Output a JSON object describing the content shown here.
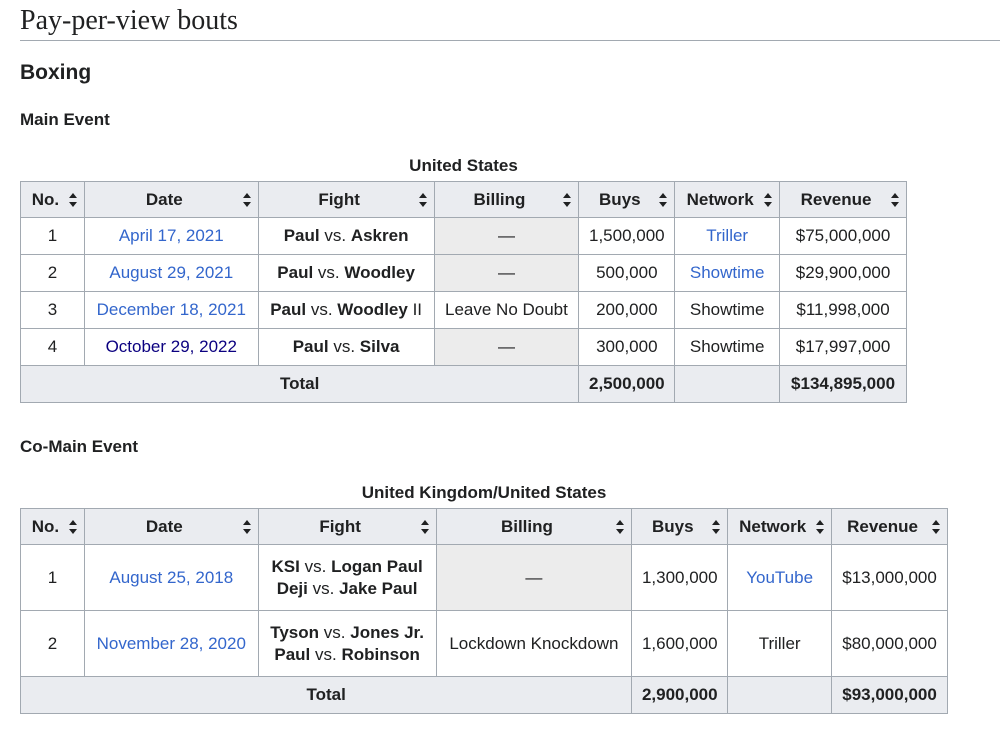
{
  "section_title": "Pay-per-view bouts",
  "subsection_title": "Boxing",
  "main_event": {
    "heading": "Main Event",
    "caption": "United States",
    "headers": [
      "No.",
      "Date",
      "Fight",
      "Billing",
      "Buys",
      "Network",
      "Revenue"
    ],
    "rows": [
      {
        "no": "1",
        "date": "April 17, 2021",
        "fighter_a": "Paul",
        "vs": "vs.",
        "fighter_b": "Askren",
        "suffix": "",
        "billing": "—",
        "buys": "1,500,000",
        "network": "Triller",
        "revenue": "$75,000,000"
      },
      {
        "no": "2",
        "date": "August 29, 2021",
        "fighter_a": "Paul",
        "vs": "vs.",
        "fighter_b": "Woodley",
        "suffix": "",
        "billing": "—",
        "buys": "500,000",
        "network": "Showtime",
        "revenue": "$29,900,000"
      },
      {
        "no": "3",
        "date": "December 18, 2021",
        "fighter_a": "Paul",
        "vs": "vs.",
        "fighter_b": "Woodley",
        "suffix": "II",
        "billing": "Leave No Doubt",
        "buys": "200,000",
        "network": "Showtime",
        "revenue": "$11,998,000"
      },
      {
        "no": "4",
        "date": "October 29, 2022",
        "fighter_a": "Paul",
        "vs": "vs.",
        "fighter_b": "Silva",
        "suffix": "",
        "billing": "—",
        "buys": "300,000",
        "network": "Showtime",
        "revenue": "$17,997,000"
      }
    ],
    "total": {
      "label": "Total",
      "buys": "2,500,000",
      "revenue": "$134,895,000"
    }
  },
  "co_main_event": {
    "heading": "Co-Main Event",
    "caption": "United Kingdom/United States",
    "headers": [
      "No.",
      "Date",
      "Fight",
      "Billing",
      "Buys",
      "Network",
      "Revenue"
    ],
    "rows": [
      {
        "no": "1",
        "date": "August 25, 2018",
        "fight1_a": "KSI",
        "fight1_vs": "vs.",
        "fight1_b": "Logan Paul",
        "fight2_a": "Deji",
        "fight2_vs": "vs.",
        "fight2_b": "Jake Paul",
        "billing": "—",
        "buys": "1,300,000",
        "network": "YouTube",
        "revenue": "$13,000,000"
      },
      {
        "no": "2",
        "date": "November 28, 2020",
        "fight1_a": "Tyson",
        "fight1_vs": "vs.",
        "fight1_b": "Jones Jr.",
        "fight2_a": "Paul",
        "fight2_vs": "vs.",
        "fight2_b": "Robinson",
        "billing": "Lockdown Knockdown",
        "buys": "1,600,000",
        "network": "Triller",
        "revenue": "$80,000,000"
      }
    ],
    "total": {
      "label": "Total",
      "buys": "2,900,000",
      "revenue": "$93,000,000"
    }
  },
  "colors": {
    "link": "#3366cc",
    "visited_link": "#0b0080",
    "header_bg": "#eaecf0",
    "border": "#a2a9b1",
    "na_bg": "#ececec"
  }
}
